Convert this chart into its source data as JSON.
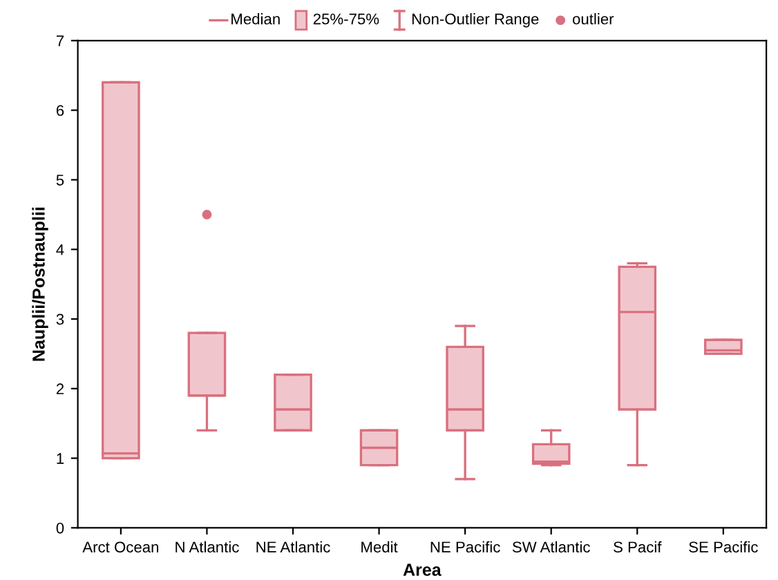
{
  "chart_data": {
    "type": "box",
    "xlabel": "Area",
    "ylabel": "Nauplii/Postnauplii",
    "categories": [
      "Arct Ocean",
      "N Atlantic",
      "NE Atlantic",
      "Medit",
      "NE Pacific",
      "SW Atlantic",
      "S Pacif",
      "SE Pacific"
    ],
    "series": [
      {
        "color": "#d9707f",
        "boxes": [
          {
            "low": 1.0,
            "q1": 1.0,
            "median": 1.07,
            "q3": 6.4,
            "high": 6.4
          },
          {
            "low": 1.4,
            "q1": 1.9,
            "median": 1.9,
            "q3": 2.8,
            "high": 2.8,
            "outliers": [
              4.5
            ]
          },
          {
            "low": 1.4,
            "q1": 1.4,
            "median": 1.7,
            "q3": 2.2,
            "high": 2.2
          },
          {
            "low": 0.9,
            "q1": 0.9,
            "median": 1.15,
            "q3": 1.4,
            "high": 1.4
          },
          {
            "low": 0.7,
            "q1": 1.4,
            "median": 1.7,
            "q3": 2.6,
            "high": 2.9
          },
          {
            "low": 0.9,
            "q1": 0.92,
            "median": 0.95,
            "q3": 1.2,
            "high": 1.4
          },
          {
            "low": 0.9,
            "q1": 1.7,
            "median": 3.1,
            "q3": 3.75,
            "high": 3.8
          },
          {
            "low": 2.5,
            "q1": 2.5,
            "median": 2.55,
            "q3": 2.7,
            "high": 2.7
          }
        ]
      }
    ],
    "annotations": [
      "Median",
      "25%-75%",
      "Non-Outlier Range",
      "outlier"
    ],
    "ylim": [
      0,
      7
    ],
    "yticks": [
      0,
      1,
      2,
      3,
      4,
      5,
      6,
      7
    ],
    "grid": false
  }
}
